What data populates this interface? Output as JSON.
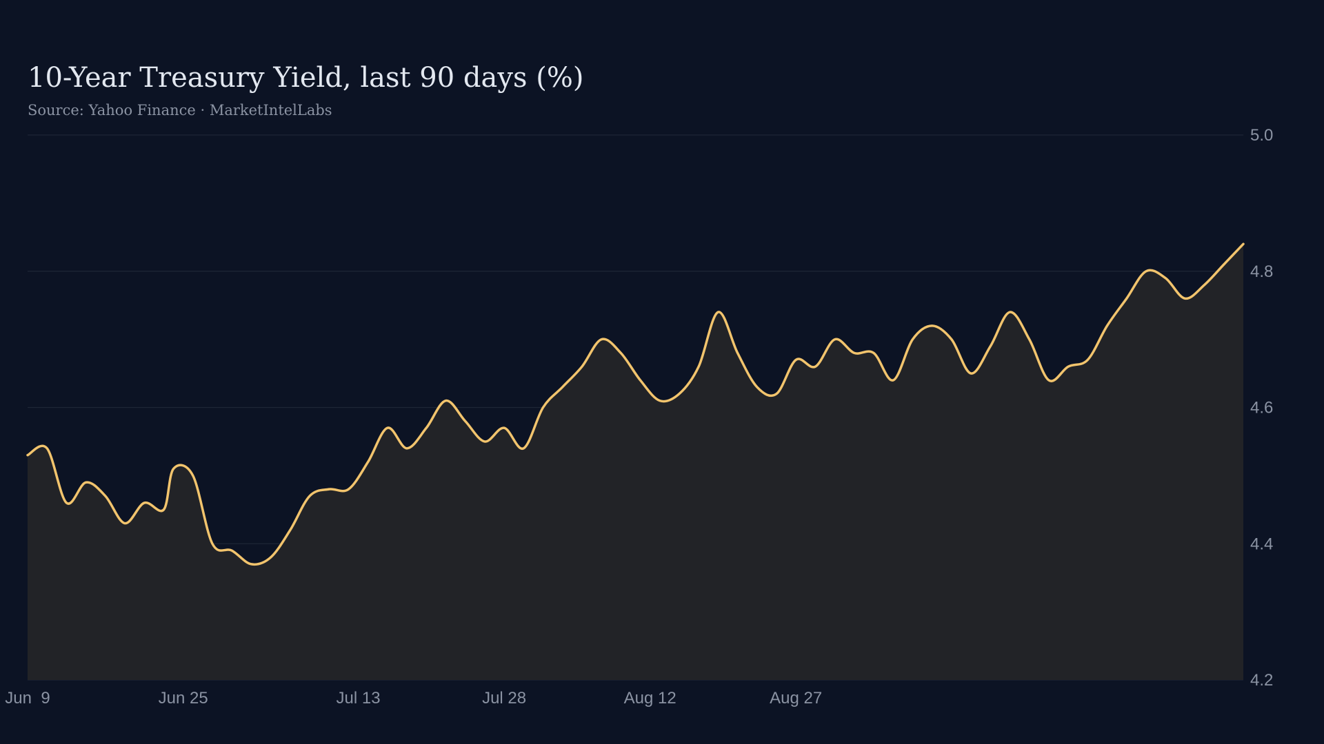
{
  "colors": {
    "background": "#0c1324",
    "line": "#f2c46d",
    "area": "#222327",
    "grid": "#1e2636",
    "tick_text": "#8b93a3",
    "title_text": "#e3e8f0"
  },
  "chart_data": {
    "type": "area",
    "title": "10-Year Treasury Yield, last 90 days (%)",
    "subtitle": "Source: Yahoo Finance · MarketIntelLabs",
    "xlabel": "",
    "ylabel": "",
    "ylim": [
      4.2,
      5.0
    ],
    "yticks": [
      "4.2",
      "4.4",
      "4.6",
      "4.8",
      "5.0"
    ],
    "y_axis_position": "right",
    "grid": "horizontal",
    "legend": "none",
    "xticks": [
      {
        "label": "Jun  9",
        "date": "2024-06-09"
      },
      {
        "label": "Jun 25",
        "date": "2024-06-25"
      },
      {
        "label": "Jul 13",
        "date": "2024-07-13"
      },
      {
        "label": "Jul 28",
        "date": "2024-07-28"
      },
      {
        "label": "Aug 12",
        "date": "2024-08-12"
      },
      {
        "label": "Aug 27",
        "date": "2024-08-27"
      }
    ],
    "series": [
      {
        "values": [
          [
            "2024-06-09",
            4.53
          ],
          [
            "2024-06-11",
            4.54
          ],
          [
            "2024-06-13",
            4.46
          ],
          [
            "2024-06-15",
            4.49
          ],
          [
            "2024-06-17",
            4.47
          ],
          [
            "2024-06-19",
            4.43
          ],
          [
            "2024-06-21",
            4.46
          ],
          [
            "2024-06-23",
            4.45
          ],
          [
            "2024-06-24",
            4.51
          ],
          [
            "2024-06-26",
            4.5
          ],
          [
            "2024-06-28",
            4.4
          ],
          [
            "2024-06-30",
            4.39
          ],
          [
            "2024-07-02",
            4.37
          ],
          [
            "2024-07-04",
            4.38
          ],
          [
            "2024-07-06",
            4.42
          ],
          [
            "2024-07-08",
            4.47
          ],
          [
            "2024-07-10",
            4.48
          ],
          [
            "2024-07-12",
            4.48
          ],
          [
            "2024-07-14",
            4.52
          ],
          [
            "2024-07-16",
            4.57
          ],
          [
            "2024-07-18",
            4.54
          ],
          [
            "2024-07-20",
            4.57
          ],
          [
            "2024-07-22",
            4.61
          ],
          [
            "2024-07-24",
            4.58
          ],
          [
            "2024-07-26",
            4.55
          ],
          [
            "2024-07-28",
            4.57
          ],
          [
            "2024-07-30",
            4.54
          ],
          [
            "2024-08-01",
            4.6
          ],
          [
            "2024-08-03",
            4.63
          ],
          [
            "2024-08-05",
            4.66
          ],
          [
            "2024-08-07",
            4.7
          ],
          [
            "2024-08-09",
            4.68
          ],
          [
            "2024-08-11",
            4.64
          ],
          [
            "2024-08-13",
            4.61
          ],
          [
            "2024-08-15",
            4.62
          ],
          [
            "2024-08-17",
            4.66
          ],
          [
            "2024-08-19",
            4.74
          ],
          [
            "2024-08-21",
            4.68
          ],
          [
            "2024-08-23",
            4.63
          ],
          [
            "2024-08-25",
            4.62
          ],
          [
            "2024-08-27",
            4.67
          ],
          [
            "2024-08-29",
            4.66
          ],
          [
            "2024-08-31",
            4.7
          ],
          [
            "2024-09-02",
            4.68
          ],
          [
            "2024-09-04",
            4.68
          ],
          [
            "2024-09-06",
            4.64
          ],
          [
            "2024-09-08",
            4.7
          ],
          [
            "2024-09-10",
            4.72
          ],
          [
            "2024-09-12",
            4.7
          ],
          [
            "2024-09-14",
            4.65
          ],
          [
            "2024-09-16",
            4.69
          ],
          [
            "2024-09-18",
            4.74
          ],
          [
            "2024-09-20",
            4.7
          ],
          [
            "2024-09-22",
            4.64
          ],
          [
            "2024-09-24",
            4.66
          ],
          [
            "2024-09-26",
            4.67
          ],
          [
            "2024-09-28",
            4.72
          ],
          [
            "2024-09-30",
            4.76
          ],
          [
            "2024-10-02",
            4.8
          ],
          [
            "2024-10-04",
            4.79
          ],
          [
            "2024-10-06",
            4.76
          ],
          [
            "2024-10-08",
            4.78
          ],
          [
            "2024-10-10",
            4.81
          ],
          [
            "2024-10-12",
            4.84
          ]
        ]
      }
    ]
  }
}
